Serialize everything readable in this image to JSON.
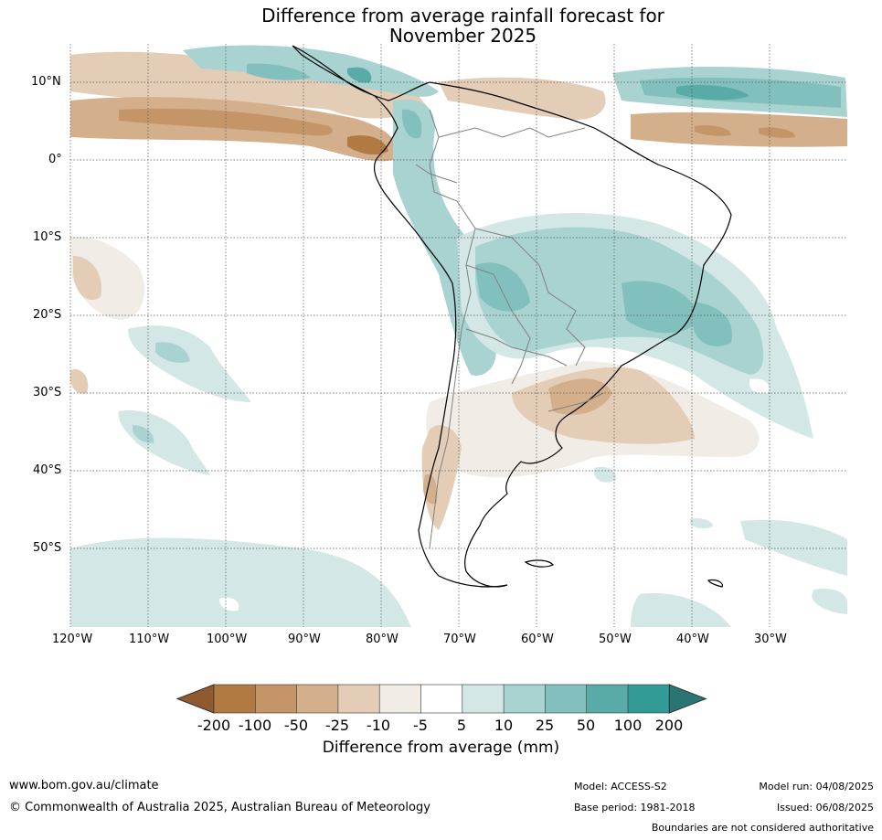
{
  "title": {
    "line1": "Difference from average rainfall forecast for",
    "line2": "November 2025"
  },
  "axes": {
    "lat_labels": [
      "10°N",
      "0°",
      "10°S",
      "20°S",
      "30°S",
      "40°S",
      "50°S"
    ],
    "lon_labels": [
      "120°W",
      "110°W",
      "100°W",
      "90°W",
      "80°W",
      "70°W",
      "60°W",
      "50°W",
      "40°W",
      "30°W"
    ]
  },
  "colorbar": {
    "title": "Difference from average (mm)",
    "ticks": [
      "-200",
      "-100",
      "-50",
      "-25",
      "-10",
      "-5",
      "5",
      "10",
      "25",
      "50",
      "100",
      "200"
    ],
    "colors": [
      "#8f5a2f",
      "#b07a42",
      "#c49566",
      "#d3b08b",
      "#e4cdb6",
      "#f1ece6",
      "#ffffff",
      "#d3e8e6",
      "#a8d3d1",
      "#82c0bd",
      "#58aba7",
      "#339b96",
      "#2a7473"
    ]
  },
  "footer": {
    "website": "www.bom.gov.au/climate",
    "copyright": "© Commonwealth of Australia 2025, Australian Bureau of Meteorology",
    "model": "Model: ACCESS-S2",
    "base_period": "Base period: 1981-2018",
    "model_run": "Model run: 04/08/2025",
    "issued": "Issued: 06/08/2025",
    "boundaries_note": "Boundaries are not considered authoritative"
  }
}
